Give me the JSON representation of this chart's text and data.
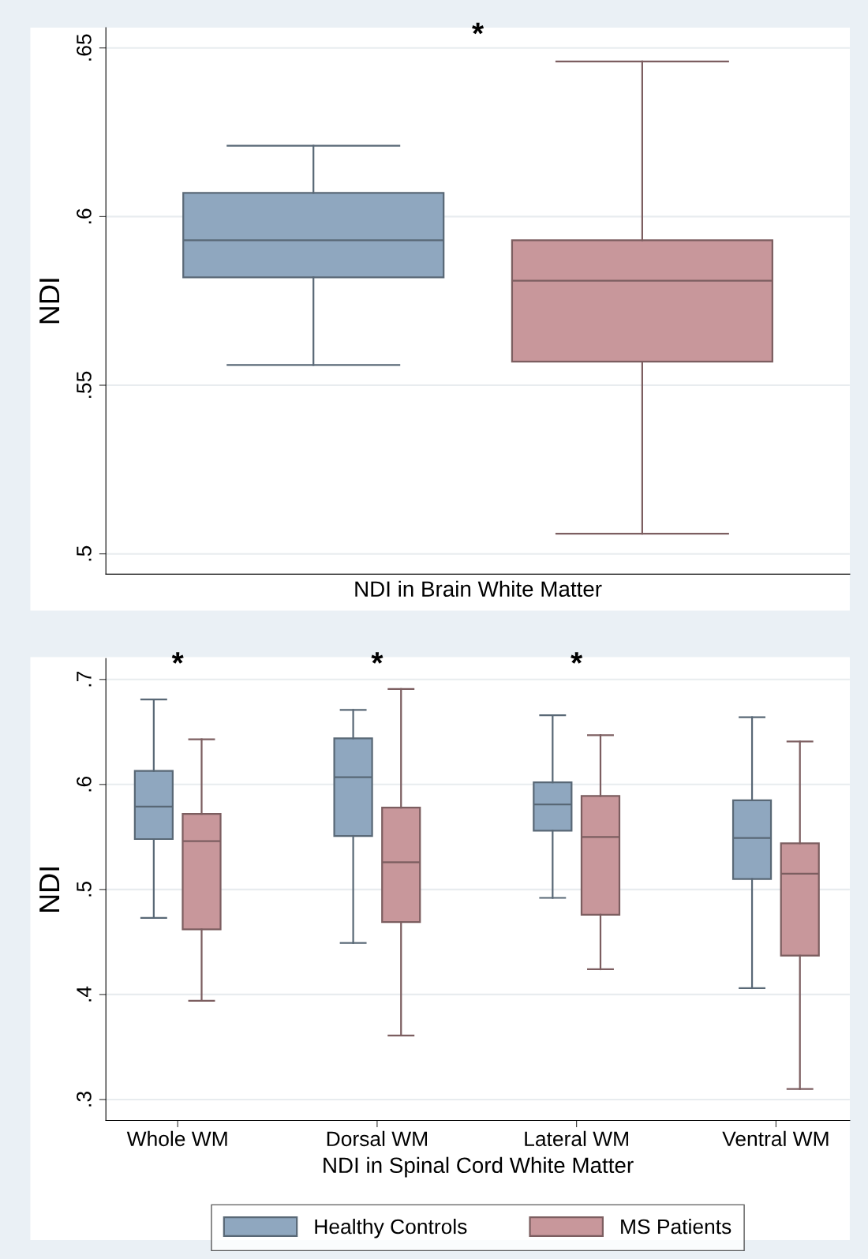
{
  "chart_data": [
    {
      "type": "box",
      "xlabel": "NDI in Brain White Matter",
      "ylabel": "NDI",
      "categories": [
        null
      ],
      "ylim": [
        0.494,
        0.656
      ],
      "yticks": [
        {
          "value": 0.5,
          "label": ".5"
        },
        {
          "value": 0.55,
          "label": ".55"
        },
        {
          "value": 0.6,
          "label": ".6"
        },
        {
          "value": 0.65,
          "label": ".65"
        }
      ],
      "grid": "y",
      "tick_labels": "y",
      "series": [
        {
          "name": "Healthy Controls",
          "color": "#8fa7bf",
          "boxes": [
            {
              "low": 0.556,
              "q1": 0.582,
              "median": 0.593,
              "q3": 0.607,
              "high": 0.621
            }
          ]
        },
        {
          "name": "MS Patients",
          "color": "#c8979b",
          "boxes": [
            {
              "low": 0.506,
              "q1": 0.557,
              "median": 0.581,
              "q3": 0.593,
              "high": 0.646
            }
          ]
        }
      ],
      "annotations": [
        "*"
      ],
      "legend": "bottom"
    },
    {
      "type": "box",
      "xlabel": "NDI in Spinal Cord White Matter",
      "ylabel": "NDI",
      "categories": [
        "Whole WM",
        "Dorsal WM",
        "Lateral WM",
        "Ventral WM"
      ],
      "ylim": [
        0.28,
        0.72
      ],
      "yticks": [
        {
          "value": 0.3,
          "label": ".3"
        },
        {
          "value": 0.4,
          "label": ".4"
        },
        {
          "value": 0.5,
          "label": ".5"
        },
        {
          "value": 0.6,
          "label": ".6"
        },
        {
          "value": 0.7,
          "label": ".7"
        }
      ],
      "grid": "y",
      "legend": "bottom",
      "series": [
        {
          "name": "Healthy Controls",
          "color": "#8fa7bf",
          "boxes": [
            {
              "low": 0.473,
              "q1": 0.548,
              "median": 0.579,
              "q3": 0.613,
              "high": 0.681
            },
            {
              "low": 0.449,
              "q1": 0.551,
              "median": 0.607,
              "q3": 0.644,
              "high": 0.671
            },
            {
              "low": 0.492,
              "q1": 0.556,
              "median": 0.581,
              "q3": 0.602,
              "high": 0.666
            },
            {
              "low": 0.406,
              "q1": 0.51,
              "median": 0.549,
              "q3": 0.585,
              "high": 0.664
            }
          ]
        },
        {
          "name": "MS Patients",
          "color": "#c8979b",
          "boxes": [
            {
              "low": 0.394,
              "q1": 0.462,
              "median": 0.546,
              "q3": 0.572,
              "high": 0.643
            },
            {
              "low": 0.361,
              "q1": 0.469,
              "median": 0.526,
              "q3": 0.578,
              "high": 0.691
            },
            {
              "low": 0.424,
              "q1": 0.476,
              "median": 0.55,
              "q3": 0.589,
              "high": 0.647
            },
            {
              "low": 0.31,
              "q1": 0.437,
              "median": 0.515,
              "q3": 0.544,
              "high": 0.641
            }
          ]
        }
      ],
      "annotations": [
        "*",
        "*",
        "*"
      ]
    }
  ]
}
